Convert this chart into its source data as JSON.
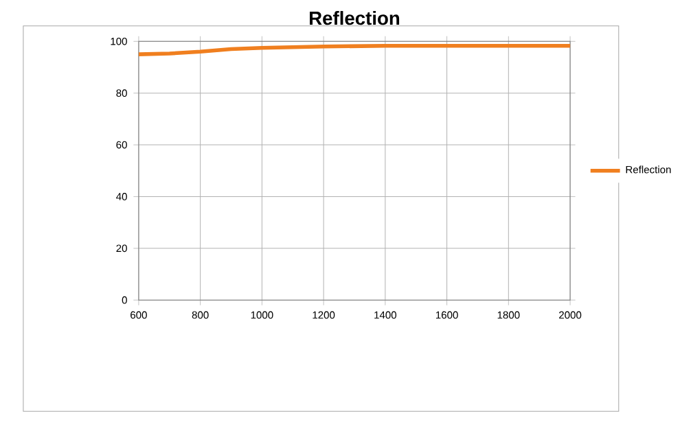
{
  "chart_data": {
    "type": "line",
    "title": "Reflection",
    "x": [
      600,
      700,
      800,
      900,
      1000,
      1200,
      1400,
      1600,
      1800,
      2000
    ],
    "series": [
      {
        "name": "Reflection",
        "color": "#f07f1f",
        "values": [
          95,
          95.3,
          96,
          97,
          97.5,
          98,
          98.3,
          98.3,
          98.3,
          98.3
        ]
      }
    ],
    "xlim": [
      600,
      2000
    ],
    "ylim": [
      0,
      100
    ],
    "xticks": [
      600,
      800,
      1000,
      1200,
      1400,
      1600,
      1800,
      2000
    ],
    "yticks": [
      0,
      20,
      40,
      60,
      80,
      100
    ],
    "grid": true,
    "legend": "right",
    "marker": "none",
    "line_style": "solid"
  }
}
